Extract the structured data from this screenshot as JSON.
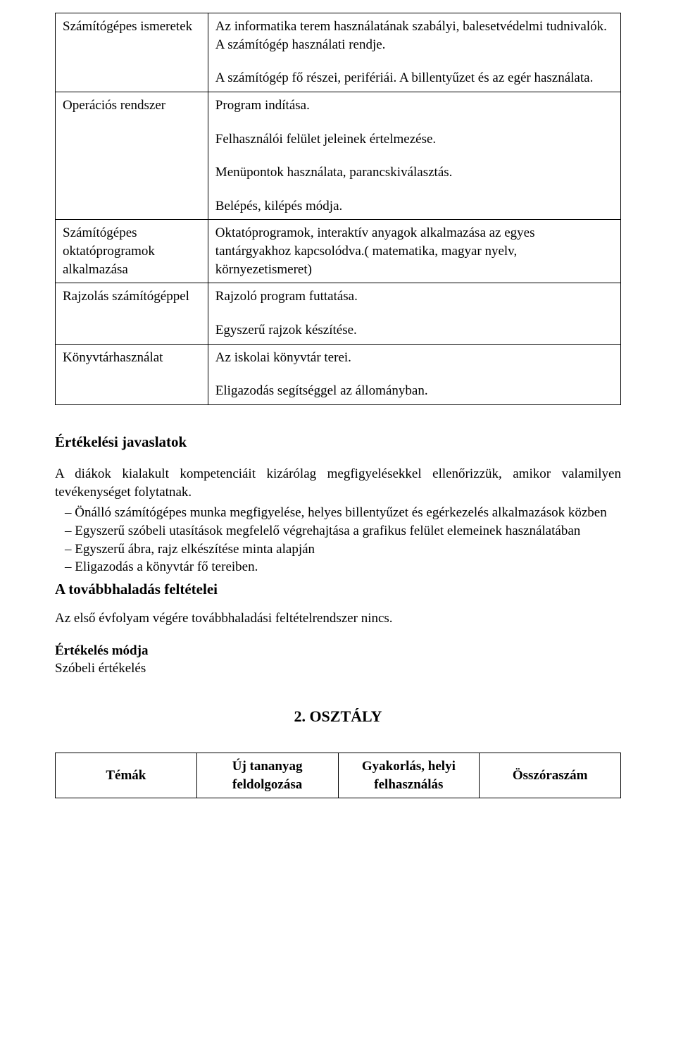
{
  "table1": {
    "rows": [
      {
        "left": "Számítógépes ismeretek",
        "right_paras": [
          "Az informatika terem használatának szabályi, balesetvédelmi tudnivalók. A számítógép használati rendje.",
          "A számítógép fő részei, perifériái. A billentyűzet és az egér használata."
        ]
      },
      {
        "left": "Operációs rendszer",
        "right_paras": [
          "Program indítása.",
          "Felhasználói felület jeleinek értelmezése.",
          "Menüpontok használata, parancskiválasztás.",
          "Belépés, kilépés módja."
        ]
      },
      {
        "left": "Számítógépes oktatóprogramok alkalmazása",
        "right_paras": [
          "Oktatóprogramok, interaktív anyagok alkalmazása az egyes tantárgyakhoz kapcsolódva.( matematika, magyar nyelv, környezetismeret)"
        ]
      },
      {
        "left": "Rajzolás számítógéppel",
        "right_paras": [
          "Rajzoló program futtatása.",
          "Egyszerű rajzok készítése."
        ]
      },
      {
        "left": "Könyvtárhasználat",
        "right_paras": [
          "Az iskolai könyvtár terei.",
          "Eligazodás segítséggel az állományban."
        ]
      }
    ]
  },
  "eval_heading": "Értékelési javaslatok",
  "eval_intro": "A diákok kialakult kompetenciáit kizárólag megfigyelésekkel ellenőrizzük, amikor valamilyen tevékenységet folytatnak.",
  "eval_items": [
    "Önálló számítógépes munka megfigyelése, helyes billentyűzet és egérkezelés alkalmazások közben",
    "Egyszerű szóbeli utasítások megfelelő végrehajtása a grafikus felület elemeinek használatában",
    "Egyszerű ábra, rajz elkészítése minta alapján",
    "Eligazodás a könyvtár fő tereiben."
  ],
  "progress_heading": "A továbbhaladás feltételei",
  "progress_text": "Az első évfolyam végére továbbhaladási feltételrendszer nincs.",
  "eval_mode_label": "Értékelés módja",
  "eval_mode_value": "Szóbeli értékelés",
  "grade_heading": "2. OSZTÁLY",
  "hours": {
    "h1": "Témák",
    "h2": "Új tananyag feldolgozása",
    "h3": "Gyakorlás, helyi felhasználás",
    "h4": "Összóraszám"
  }
}
